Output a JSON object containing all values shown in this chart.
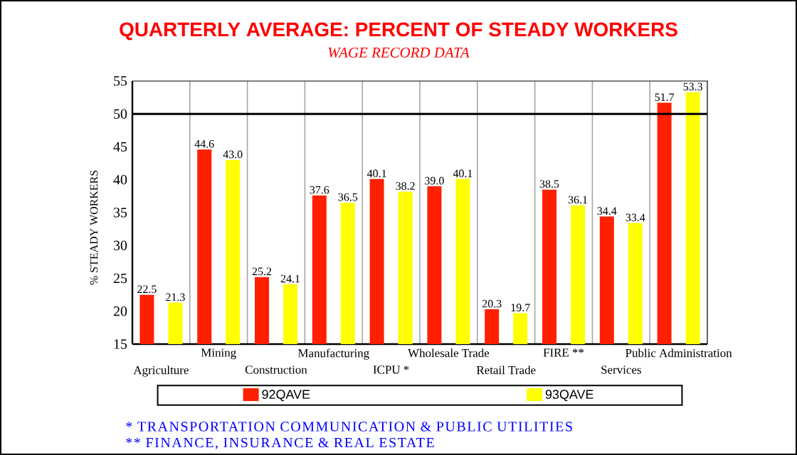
{
  "chart_data": {
    "type": "bar",
    "title": "QUARTERLY AVERAGE:  PERCENT OF STEADY WORKERS",
    "subtitle": "WAGE RECORD DATA",
    "ylabel": "% STEADY WORKERS",
    "categories": [
      "Agriculture",
      "Mining",
      "Construction",
      "Manufacturing",
      "ICPU *",
      "Wholesale Trade",
      "Retail Trade",
      "FIRE **",
      "Services",
      "Public Administration"
    ],
    "series": [
      {
        "name": "92QAVE",
        "color": "#ff2000",
        "values": [
          22.5,
          44.6,
          25.2,
          37.6,
          40.1,
          39.0,
          20.3,
          38.5,
          34.4,
          51.7
        ],
        "value_labels": [
          "22.5",
          "44.6",
          "25.2",
          "37.6",
          "40.1",
          "39.0",
          "20.3",
          "38.5",
          "34.4",
          "51.7"
        ]
      },
      {
        "name": "93QAVE",
        "color": "#ffff00",
        "values": [
          21.3,
          43.0,
          24.1,
          36.5,
          38.2,
          40.1,
          19.7,
          36.1,
          33.4,
          53.3
        ],
        "value_labels": [
          "21.3",
          "43.0",
          "24.1",
          "36.5",
          "38.2",
          "40.1",
          "19.7",
          "36.1",
          "33.4",
          "53.3"
        ]
      }
    ],
    "ylim": [
      15,
      55
    ],
    "yticks": [
      15,
      20,
      25,
      30,
      35,
      40,
      45,
      50,
      55
    ],
    "grid": "x",
    "legend": "bottom",
    "ref_lines": [
      {
        "axis": "y",
        "value": 50,
        "color": "#000000"
      }
    ],
    "annotations": [
      "* TRANSPORTATION COMMUNICATION  & PUBLIC UTILITIES",
      "** FINANCE, INSURANCE & REAL ESTATE"
    ]
  }
}
